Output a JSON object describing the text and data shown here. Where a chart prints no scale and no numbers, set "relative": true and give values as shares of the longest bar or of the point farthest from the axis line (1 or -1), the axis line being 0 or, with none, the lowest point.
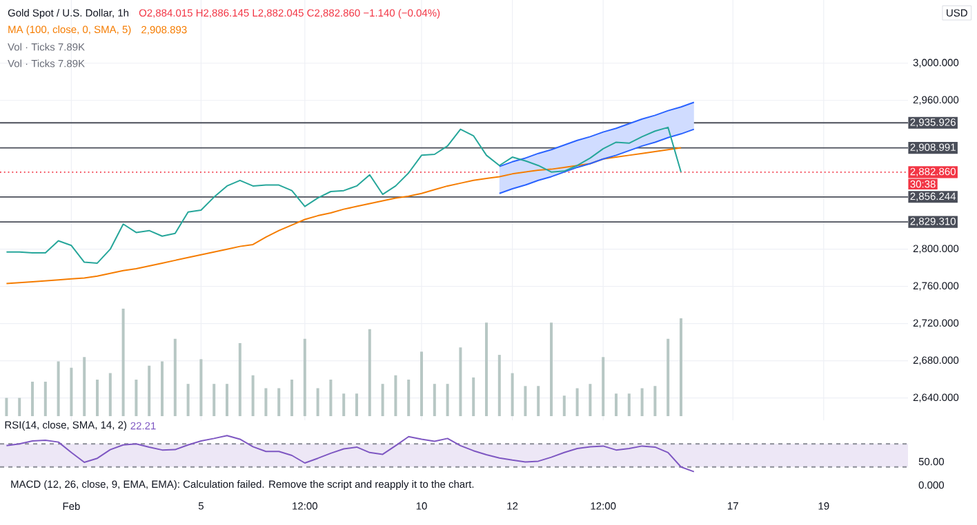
{
  "chart_data": [
    {
      "type": "line",
      "title": "Gold Spot / U.S. Dollar, 1h",
      "ylabel": "USD",
      "annotations": [
        "O2,884.015 H2,886.145 L2,882.045 C2,882.860 −1.140 (−0.04%)",
        "2,908.893",
        "30:38"
      ],
      "categories": [
        null,
        null,
        null,
        null,
        null,
        null,
        null,
        null,
        null,
        null,
        null,
        null,
        null,
        null,
        null,
        null,
        null,
        null,
        null,
        null,
        null,
        null,
        null,
        null,
        null,
        null,
        null,
        null,
        null,
        null,
        null,
        null,
        null,
        null,
        null,
        null,
        null,
        null,
        null,
        null,
        null,
        null,
        null,
        null,
        null,
        null,
        null,
        null,
        null,
        null,
        null,
        null,
        null,
        null,
        null,
        null,
        null,
        null,
        null,
        null,
        null,
        null,
        null,
        null,
        null,
        null,
        null,
        null,
        null,
        null
      ],
      "ylim": [
        2616,
        3068
      ],
      "yticks": [
        {
          "value": 2640,
          "label": "2,640.000"
        },
        {
          "value": 2680,
          "label": "2,680.000"
        },
        {
          "value": 2720,
          "label": "2,720.000"
        },
        {
          "value": 2760,
          "label": "2,760.000"
        },
        {
          "value": 2800,
          "label": "2,800.000"
        },
        {
          "value": 2960,
          "label": "2,960.000"
        },
        {
          "value": 3000,
          "label": "3,000.000"
        }
      ],
      "tick_labels": "y",
      "grid": true,
      "ref_lines": [
        {
          "axis": "y",
          "value": 2935.926,
          "label": "2,935.926",
          "color": "#4a4e59",
          "line_style": "solid"
        },
        {
          "axis": "y",
          "value": 2908.991,
          "label": "2,908.991",
          "color": "#4a4e59",
          "line_style": "solid"
        },
        {
          "axis": "y",
          "value": 2856.244,
          "label": "2,856.244",
          "color": "#4a4e59",
          "line_style": "solid"
        },
        {
          "axis": "y",
          "value": 2829.31,
          "label": "2,829.310",
          "color": "#4a4e59",
          "line_style": "solid"
        },
        {
          "axis": "y",
          "value": 2882.86,
          "label": "2,882.860",
          "color": "#f23645",
          "line_style": "dotted"
        }
      ],
      "series": [
        {
          "name": "MA (100, close, 0, SMA, 5)",
          "color": "#f57c00",
          "values": [
            2763,
            2764,
            2765,
            2766,
            2767,
            2768,
            2769,
            2771,
            2774,
            2777,
            2779,
            2782,
            2785,
            2788,
            2791,
            2794,
            2797,
            2800,
            2803,
            2805,
            2813,
            2820,
            2826,
            2832,
            2836,
            2839,
            2843,
            2846,
            2849,
            2852,
            2855,
            2857,
            2860,
            2864,
            2868,
            2871,
            2874,
            2876,
            2878,
            2881,
            2883,
            2885,
            2886,
            2888,
            2890,
            2892,
            2897,
            2899,
            2901,
            2903,
            2905,
            2907,
            2909,
            null,
            null,
            null,
            null,
            null,
            null,
            null,
            null,
            null,
            null,
            null,
            null,
            null,
            null,
            null,
            null,
            null
          ]
        },
        {
          "type": "line",
          "color": "#2962ff",
          "values": [
            null,
            null,
            null,
            null,
            null,
            null,
            null,
            null,
            null,
            null,
            null,
            null,
            null,
            null,
            null,
            null,
            null,
            null,
            null,
            null,
            null,
            null,
            null,
            null,
            null,
            null,
            null,
            null,
            null,
            null,
            null,
            null,
            null,
            null,
            null,
            null,
            null,
            null,
            2889,
            2894,
            2898,
            2903,
            2907,
            2912,
            2917,
            2921,
            2926,
            2930,
            2935,
            2940,
            2944,
            2949,
            2953,
            2958,
            null,
            null,
            null,
            null,
            null,
            null,
            null,
            null,
            null,
            null,
            null,
            null,
            null,
            null,
            null,
            null
          ],
          "upper": [
            null,
            null,
            null,
            null,
            null,
            null,
            null,
            null,
            null,
            null,
            null,
            null,
            null,
            null,
            null,
            null,
            null,
            null,
            null,
            null,
            null,
            null,
            null,
            null,
            null,
            null,
            null,
            null,
            null,
            null,
            null,
            null,
            null,
            null,
            null,
            null,
            null,
            null,
            2889,
            2894,
            2898,
            2903,
            2907,
            2912,
            2917,
            2921,
            2926,
            2930,
            2935,
            2940,
            2944,
            2949,
            2953,
            2958,
            null,
            null,
            null,
            null,
            null,
            null,
            null,
            null,
            null,
            null,
            null,
            null,
            null,
            null,
            null,
            null
          ],
          "lower": [
            null,
            null,
            null,
            null,
            null,
            null,
            null,
            null,
            null,
            null,
            null,
            null,
            null,
            null,
            null,
            null,
            null,
            null,
            null,
            null,
            null,
            null,
            null,
            null,
            null,
            null,
            null,
            null,
            null,
            null,
            null,
            null,
            null,
            null,
            null,
            null,
            null,
            null,
            2860,
            2865,
            2869,
            2874,
            2878,
            2883,
            2888,
            2892,
            2897,
            2901,
            2906,
            2911,
            2915,
            2920,
            2924,
            2929,
            null,
            null,
            null,
            null,
            null,
            null,
            null,
            null,
            null,
            null,
            null,
            null,
            null,
            null,
            null,
            null
          ]
        },
        {
          "type": "line",
          "color": "#2962ff",
          "values": [
            null,
            null,
            null,
            null,
            null,
            null,
            null,
            null,
            null,
            null,
            null,
            null,
            null,
            null,
            null,
            null,
            null,
            null,
            null,
            null,
            null,
            null,
            null,
            null,
            null,
            null,
            null,
            null,
            null,
            null,
            null,
            null,
            null,
            null,
            null,
            null,
            null,
            null,
            2860,
            2865,
            2869,
            2874,
            2878,
            2883,
            2888,
            2892,
            2897,
            2901,
            2906,
            2911,
            2915,
            2920,
            2924,
            2929,
            null,
            null,
            null,
            null,
            null,
            null,
            null,
            null,
            null,
            null,
            null,
            null,
            null,
            null,
            null,
            null
          ]
        },
        {
          "color": "#26a69a",
          "values": [
            2797,
            2797,
            2796,
            2796,
            2809,
            2804,
            2786,
            2785,
            2800,
            2827,
            2818,
            2820,
            2814,
            2817,
            2840,
            2842,
            2856,
            2868,
            2874,
            2868,
            2869,
            2869,
            2863,
            2846,
            2855,
            2862,
            2863,
            2868,
            2880,
            2859,
            2868,
            2882,
            2901,
            2902,
            2911,
            2929,
            2922,
            2901,
            2890,
            2899,
            2895,
            2890,
            2883,
            2884,
            2890,
            2898,
            2908,
            2915,
            2914,
            2921,
            2927,
            2931,
            2883,
            null,
            null,
            null,
            null,
            null,
            null,
            null,
            null,
            null,
            null,
            null,
            null,
            null,
            null,
            null,
            null,
            null
          ]
        }
      ]
    },
    {
      "type": "bar",
      "relative": true,
      "color": "#b7c7c4",
      "tick_labels": false,
      "annotations": [
        "Vol · Ticks 7.89K",
        "Vol · Ticks 7.89K"
      ],
      "categories": [
        null,
        null,
        null,
        null,
        null,
        null,
        null,
        null,
        null,
        null,
        null,
        null,
        null,
        null,
        null,
        null,
        null,
        null,
        null,
        null,
        null,
        null,
        null,
        null,
        null,
        null,
        null,
        null,
        null,
        null,
        null,
        null,
        null,
        null,
        null,
        null,
        null,
        null,
        null,
        null,
        null,
        null,
        null,
        null,
        null,
        null,
        null,
        null,
        null,
        null,
        null,
        null,
        null,
        null,
        null,
        null,
        null,
        null,
        null,
        null,
        null,
        null,
        null,
        null,
        null,
        null,
        null,
        null,
        null,
        null
      ],
      "values": [
        0.17,
        0.17,
        0.32,
        0.32,
        0.51,
        0.45,
        0.55,
        0.34,
        0.4,
        1,
        0.34,
        0.47,
        0.51,
        0.72,
        0.3,
        0.53,
        0.3,
        0.3,
        0.68,
        0.38,
        0.26,
        0.26,
        0.34,
        0.72,
        0.26,
        0.34,
        0.21,
        0.21,
        0.81,
        0.3,
        0.38,
        0.34,
        0.6,
        0.3,
        0.3,
        0.64,
        0.36,
        0.87,
        0.57,
        0.4,
        0.28,
        0.28,
        0.87,
        0.19,
        0.26,
        0.3,
        0.55,
        0.21,
        0.21,
        0.26,
        0.28,
        0.72,
        0.91,
        null,
        null,
        null,
        null,
        null,
        null,
        null,
        null,
        null,
        null,
        null,
        null,
        null,
        null,
        null,
        null,
        null
      ]
    },
    {
      "type": "line",
      "relative": true,
      "annotations": [
        "22.21",
        "50.00"
      ],
      "categories": [
        null,
        null,
        null,
        null,
        null,
        "Feb",
        null,
        null,
        null,
        null,
        null,
        null,
        null,
        null,
        null,
        "5",
        null,
        null,
        null,
        null,
        null,
        null,
        null,
        "12:00",
        null,
        null,
        null,
        null,
        null,
        null,
        null,
        null,
        "10",
        null,
        null,
        null,
        null,
        null,
        null,
        "12",
        null,
        null,
        null,
        null,
        null,
        null,
        "12:00",
        null,
        null,
        null,
        null,
        null,
        null,
        null,
        null,
        null,
        "17",
        null,
        null,
        null,
        null,
        null,
        null,
        "19",
        null,
        null,
        null,
        null,
        null,
        null
      ],
      "bands": [
        {
          "axis": "y",
          "from": 0.13,
          "to": 0.77,
          "color": "#ede7f6"
        }
      ],
      "ref_lines": [
        {
          "axis": "y",
          "value": 0.13,
          "color": "#8a8d96",
          "line_style": "dashed"
        },
        {
          "axis": "y",
          "value": 0.77,
          "color": "#8a8d96",
          "line_style": "dashed"
        }
      ],
      "series": [
        {
          "name": "RSI(14, close, SMA, 14, 2)",
          "color": "#7e57c2",
          "values": [
            0.72,
            0.77,
            0.85,
            0.87,
            0.82,
            0.53,
            0.26,
            0.37,
            0.61,
            0.74,
            0.77,
            0.68,
            0.6,
            0.61,
            0.74,
            0.85,
            0.92,
            1,
            0.9,
            0.69,
            0.56,
            0.56,
            0.45,
            0.24,
            0.37,
            0.51,
            0.63,
            0.68,
            0.53,
            0.48,
            0.72,
            0.97,
            0.9,
            0.84,
            0.92,
            0.72,
            0.58,
            0.47,
            0.38,
            0.32,
            0.27,
            0.29,
            0.4,
            0.53,
            0.64,
            0.69,
            0.71,
            0.6,
            0.64,
            0.71,
            0.68,
            0.53,
            0.13,
            0,
            null,
            null,
            null,
            null,
            null,
            null,
            null,
            null,
            null,
            null,
            null,
            null,
            null,
            null,
            null,
            null
          ]
        }
      ]
    },
    {
      "type": "other",
      "title": "MACD (12, 26, close, 9, EMA, EMA): Calculation failed. Remove the script and reapply it to the chart.",
      "annotations": [
        "0.000"
      ]
    }
  ]
}
